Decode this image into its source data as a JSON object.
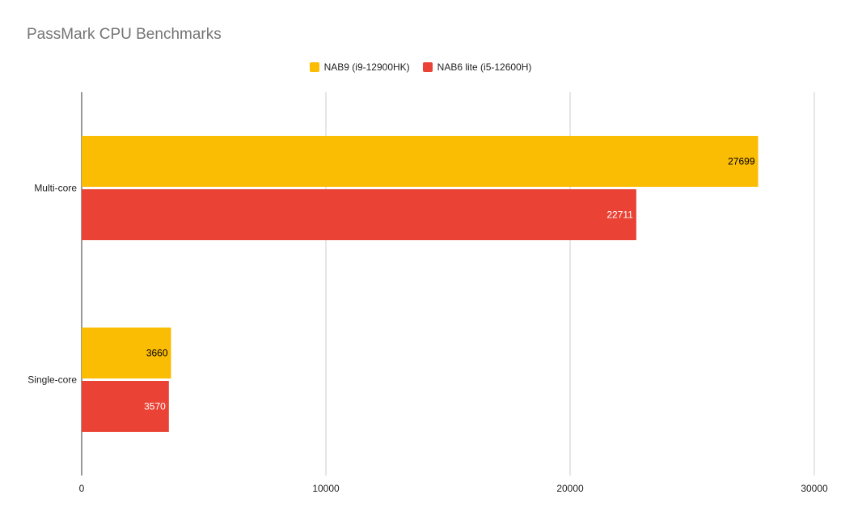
{
  "chart_data": {
    "type": "bar",
    "orientation": "horizontal",
    "title": "PassMark CPU Benchmarks",
    "xlabel": "",
    "ylabel": "",
    "categories": [
      "Multi-core",
      "Single-core"
    ],
    "series": [
      {
        "name": "NAB9 (i9-12900HK)",
        "color": "#FBBC04",
        "values": [
          27699,
          3660
        ],
        "label_color": "#000000"
      },
      {
        "name": "NAB6 lite (i5-12600H)",
        "color": "#EA4335",
        "values": [
          22711,
          3570
        ],
        "label_color": "#ffffff"
      }
    ],
    "xlim": [
      0,
      30000
    ],
    "xticks": [
      "0",
      "10000",
      "20000",
      "30000"
    ],
    "grid": true,
    "legend_position": "top"
  }
}
